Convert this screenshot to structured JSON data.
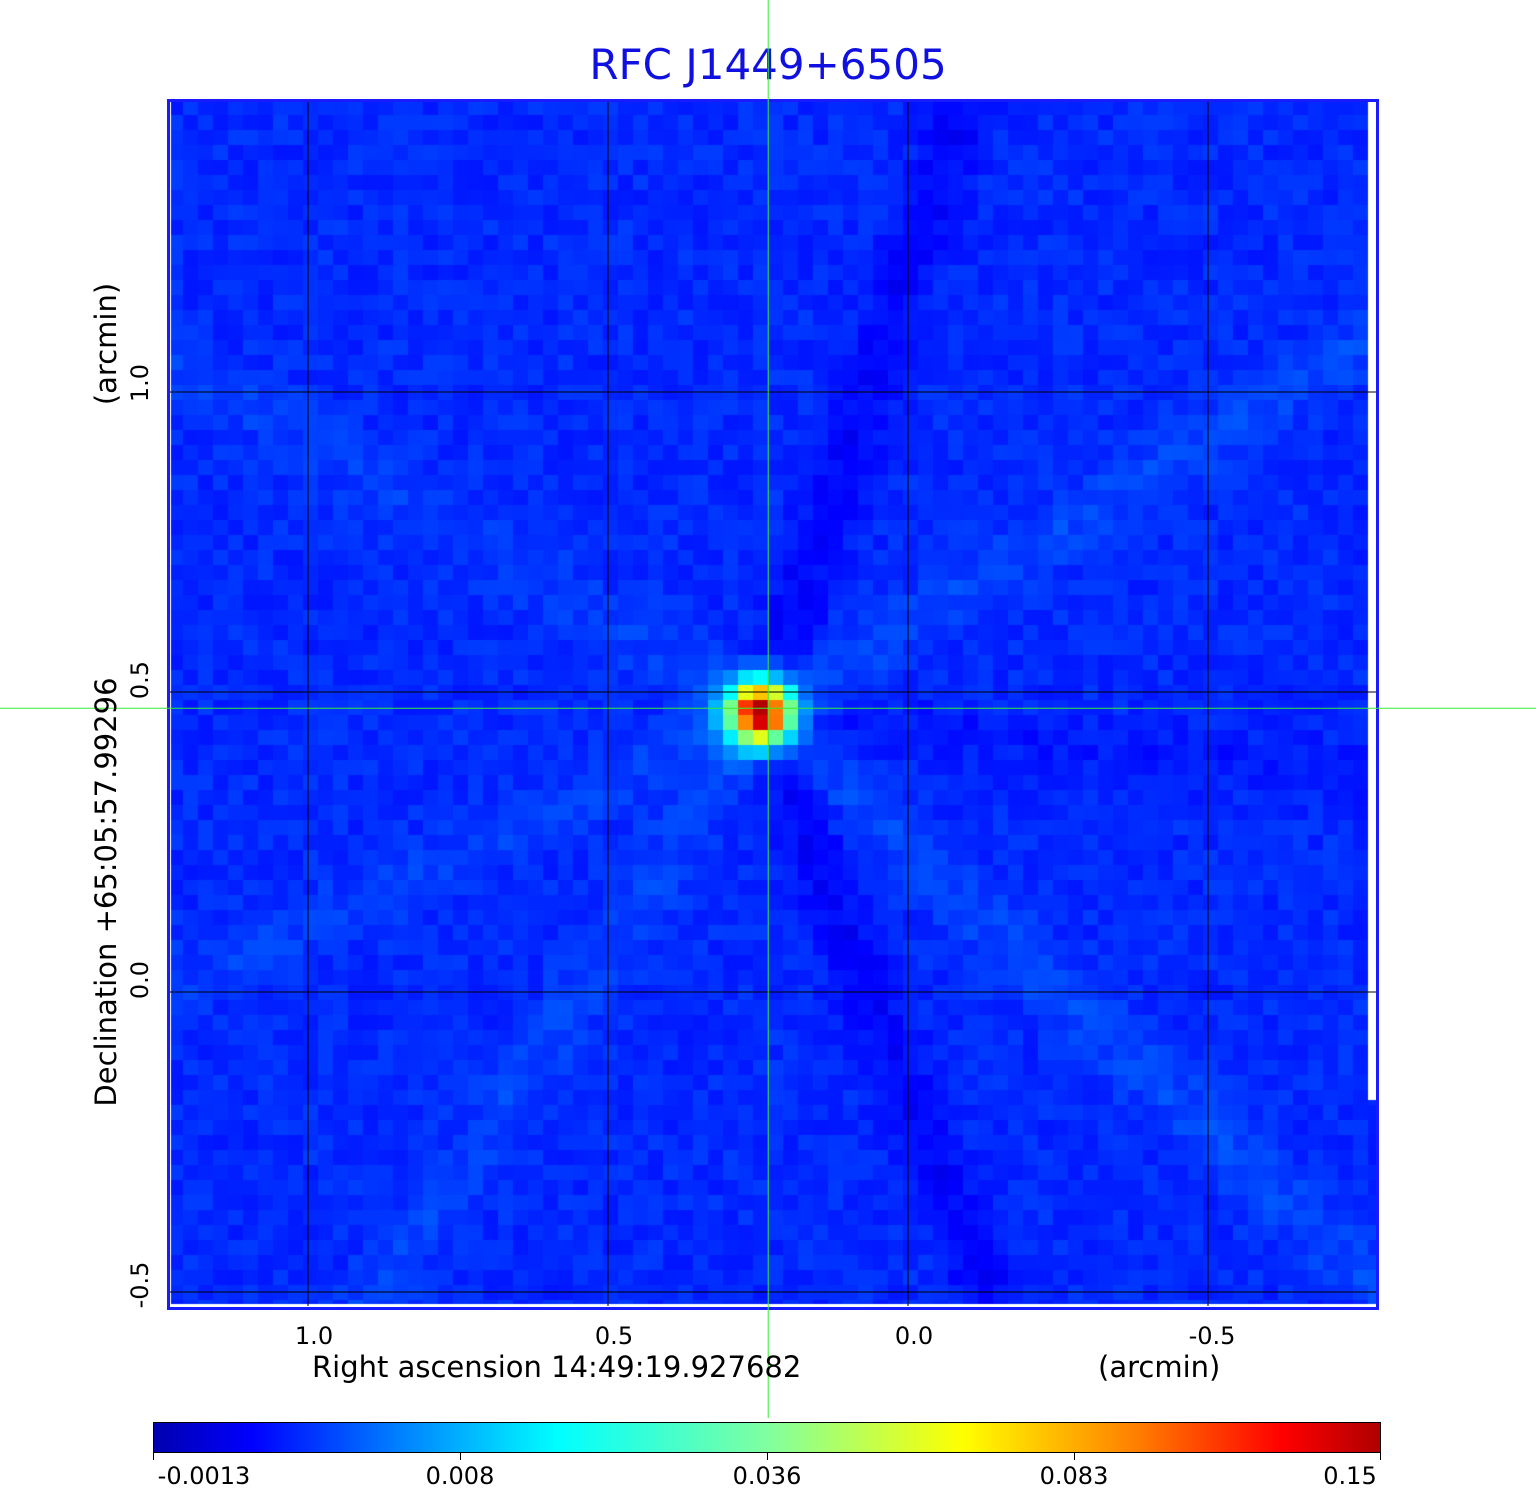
{
  "chart_data": {
    "type": "heatmap",
    "title": "RFC J1449+6505",
    "xlabel": "Right ascension  14:49:19.927682",
    "xunit": "(arcmin)",
    "ylabel": "Declination  +65:05:57.99296",
    "yunit": "(arcmin)",
    "x_ticks": [
      "1.0",
      "0.5",
      "0.0",
      "-0.5"
    ],
    "y_ticks": [
      "1.0",
      "0.5",
      "0.0",
      "-0.5"
    ],
    "x_tick_values": [
      1.0,
      0.5,
      0.0,
      -0.5
    ],
    "y_tick_values": [
      1.0,
      0.5,
      0.0,
      -0.5
    ],
    "xlim": [
      1.23,
      -0.78
    ],
    "ylim": [
      -0.53,
      1.48
    ],
    "grid": true,
    "crosshair": {
      "x": 0.233,
      "y": 0.473
    },
    "peak": {
      "x": 0.245,
      "y": 0.466,
      "value": 0.15
    },
    "colormap": "jet",
    "colorbar": {
      "placement": "bottom",
      "ticks": [
        "-0.0013",
        "0.008",
        "0.036",
        "0.083",
        "0.15"
      ],
      "min": -0.0013,
      "max": 0.15
    },
    "colors": {
      "title": "#1010e0",
      "frame": "#1a1aff",
      "crosshair": "#33ee33",
      "grid": "#000000"
    }
  }
}
